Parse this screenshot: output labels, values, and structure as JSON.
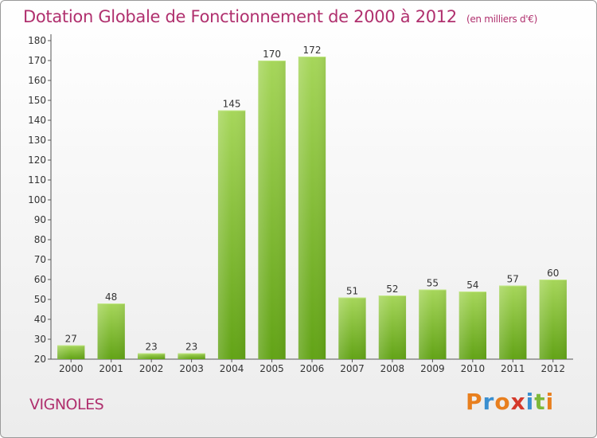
{
  "title": "Dotation Globale de Fonctionnement de 2000 à 2012",
  "subtitle": "(en milliers d'€)",
  "commune": "VIGNOLES",
  "logo": {
    "letters": [
      "P",
      "r",
      "o",
      "x",
      "i",
      "t",
      "i"
    ],
    "colors": [
      "#e87f1e",
      "#3a8fd0",
      "#e87f1e",
      "#d4392b",
      "#3a8fd0",
      "#7db83a",
      "#e87f1e"
    ]
  },
  "colors": {
    "bar_light": "#a6d65a",
    "bar_dark": "#62a316",
    "accent": "#b0306e"
  },
  "chart_data": {
    "type": "bar",
    "categories": [
      "2000",
      "2001",
      "2002",
      "2003",
      "2004",
      "2005",
      "2006",
      "2007",
      "2008",
      "2009",
      "2010",
      "2011",
      "2012"
    ],
    "values": [
      27,
      48,
      23,
      23,
      145,
      170,
      172,
      51,
      52,
      55,
      54,
      57,
      60
    ],
    "data_labels": [
      "27",
      "48",
      "23",
      "23",
      "145",
      "170",
      "172",
      "51",
      "52",
      "55",
      "54",
      "57",
      "60"
    ],
    "yticks": [
      "20",
      "30",
      "40",
      "50",
      "60",
      "70",
      "80",
      "90",
      "100",
      "110",
      "120",
      "130",
      "140",
      "150",
      "160",
      "170",
      "180"
    ],
    "ylim": [
      20,
      180
    ],
    "grid": false,
    "legend": "none"
  }
}
